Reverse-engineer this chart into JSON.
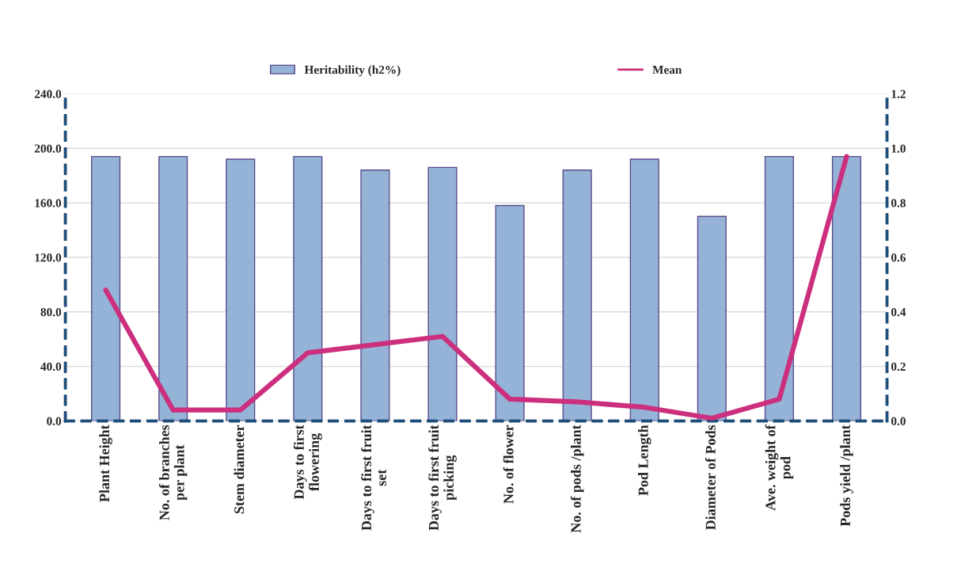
{
  "chart_data": {
    "type": "bar",
    "categories": [
      "Plant Height",
      "No. of branches\nper plant",
      "Stem diameter",
      "Days to first\nflowering",
      "Days to first fruit\nset",
      "Days to first fruit\npicking",
      "No. of flower",
      "No. of pods /plant",
      "Pod Length",
      "Diameter of Pods",
      "Ave. weight of\npod",
      "Pods yield /plant"
    ],
    "series": [
      {
        "name": "Heritability (h2%)",
        "color": "#95b3d7",
        "values": [
          194,
          194,
          192,
          194,
          184,
          186,
          158,
          184,
          192,
          150,
          194,
          194
        ]
      },
      {
        "name": "Mean",
        "type": "line",
        "axis": "y2",
        "color": "#cc2f7e",
        "values": [
          0.48,
          0.04,
          0.04,
          0.25,
          0.28,
          0.31,
          0.08,
          0.07,
          0.05,
          0.01,
          0.08,
          0.97
        ]
      }
    ],
    "ylim": [
      0,
      240
    ],
    "yticks": [
      {
        "value": 0,
        "label": "0.0"
      },
      {
        "value": 40,
        "label": "40.0"
      },
      {
        "value": 80,
        "label": "80.0"
      },
      {
        "value": 120,
        "label": "120.0"
      },
      {
        "value": 160,
        "label": "160.0"
      },
      {
        "value": 200,
        "label": "200.0"
      },
      {
        "value": 240,
        "label": "240.0"
      }
    ],
    "y2lim": [
      0,
      1.2
    ],
    "y2ticks": [
      {
        "value": 0,
        "label": "0.0"
      },
      {
        "value": 0.2,
        "label": "0.2"
      },
      {
        "value": 0.4,
        "label": "0.4"
      },
      {
        "value": 0.6,
        "label": "0.6"
      },
      {
        "value": 0.8,
        "label": "0.8"
      },
      {
        "value": 1.0,
        "label": "1.0"
      },
      {
        "value": 1.2,
        "label": "1.2"
      }
    ],
    "grid": "y",
    "legend": "top"
  }
}
